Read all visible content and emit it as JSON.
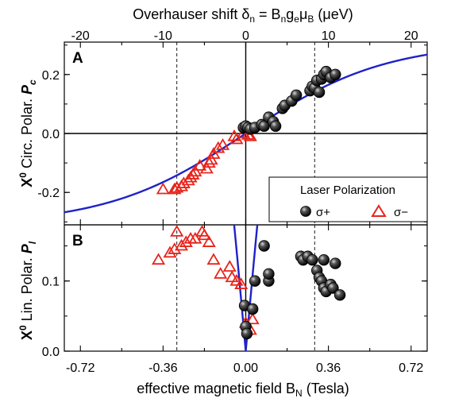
{
  "figure": {
    "top_axis_title": "Overhauser shift δ_n = B_n g_e μ_B (μeV)",
    "bottom_axis_title": "effective magnetic field B_N (Tesla)",
    "top_ticks": [
      "-20",
      "-10",
      "0",
      "10",
      "20"
    ],
    "bottom_ticks": [
      "-0.72",
      "-0.36",
      "0.00",
      "0.36",
      "0.72"
    ]
  },
  "legend": {
    "title": "Laser Polarization",
    "entries": [
      {
        "label": "σ+",
        "marker": "filled-black-circle"
      },
      {
        "label": "σ−",
        "marker": "open-red-triangle"
      }
    ]
  },
  "colors": {
    "fit_line": "#1f22c8",
    "sigma_minus": "#e8241b",
    "sigma_plus": "#000000"
  },
  "chart_data": [
    {
      "type": "scatter",
      "panel": "A",
      "ylabel": "X0 Circ. Polar. Pc",
      "xlim": [
        -0.79,
        0.79
      ],
      "ylim": [
        -0.31,
        0.31
      ],
      "yticks": [
        -0.2,
        0.0,
        0.2
      ],
      "ytick_labels": [
        "-0.2",
        "0.0",
        "0.2"
      ],
      "x_unit": "Tesla",
      "grid": false,
      "reference_lines": {
        "dashed_x": [
          -0.3,
          0.3
        ],
        "solid_x": [
          0.0
        ],
        "solid_y": [
          0.0
        ]
      },
      "series": [
        {
          "name": "σ+",
          "points": [
            {
              "x": -0.01,
              "y": 0.02
            },
            {
              "x": 0.0,
              "y": 0.025
            },
            {
              "x": 0.01,
              "y": 0.02
            },
            {
              "x": 0.02,
              "y": 0.015
            },
            {
              "x": 0.04,
              "y": 0.02
            },
            {
              "x": 0.07,
              "y": 0.03
            },
            {
              "x": 0.08,
              "y": 0.025
            },
            {
              "x": 0.1,
              "y": 0.055
            },
            {
              "x": 0.12,
              "y": 0.04
            },
            {
              "x": 0.13,
              "y": 0.025
            },
            {
              "x": 0.16,
              "y": 0.085
            },
            {
              "x": 0.17,
              "y": 0.095
            },
            {
              "x": 0.2,
              "y": 0.11
            },
            {
              "x": 0.22,
              "y": 0.13
            },
            {
              "x": 0.28,
              "y": 0.145
            },
            {
              "x": 0.29,
              "y": 0.16
            },
            {
              "x": 0.3,
              "y": 0.155
            },
            {
              "x": 0.31,
              "y": 0.18
            },
            {
              "x": 0.33,
              "y": 0.185
            },
            {
              "x": 0.34,
              "y": 0.2
            },
            {
              "x": 0.35,
              "y": 0.21
            },
            {
              "x": 0.37,
              "y": 0.19
            },
            {
              "x": 0.39,
              "y": 0.2
            },
            {
              "x": 0.32,
              "y": 0.14
            }
          ]
        },
        {
          "name": "σ−",
          "points": [
            {
              "x": -0.01,
              "y": 0.0
            },
            {
              "x": 0.01,
              "y": -0.005
            },
            {
              "x": 0.02,
              "y": -0.01
            },
            {
              "x": -0.04,
              "y": -0.02
            },
            {
              "x": -0.05,
              "y": -0.01
            },
            {
              "x": -0.1,
              "y": -0.04
            },
            {
              "x": -0.12,
              "y": -0.05
            },
            {
              "x": -0.14,
              "y": -0.07
            },
            {
              "x": -0.15,
              "y": -0.09
            },
            {
              "x": -0.16,
              "y": -0.1
            },
            {
              "x": -0.17,
              "y": -0.12
            },
            {
              "x": -0.2,
              "y": -0.11
            },
            {
              "x": -0.22,
              "y": -0.13
            },
            {
              "x": -0.23,
              "y": -0.14
            },
            {
              "x": -0.24,
              "y": -0.15
            },
            {
              "x": -0.25,
              "y": -0.16
            },
            {
              "x": -0.27,
              "y": -0.17
            },
            {
              "x": -0.28,
              "y": -0.18
            },
            {
              "x": -0.3,
              "y": -0.185
            },
            {
              "x": -0.31,
              "y": -0.19
            },
            {
              "x": -0.36,
              "y": -0.19
            }
          ]
        }
      ],
      "fit_curve": {
        "form": "0.31*tanh(1.65*x)",
        "x_range": [
          -0.79,
          0.79
        ]
      }
    },
    {
      "type": "scatter",
      "panel": "B",
      "ylabel": "X0 Lin. Polar. Pl",
      "xlim": [
        -0.79,
        0.79
      ],
      "ylim": [
        0.0,
        0.18
      ],
      "yticks": [
        0.0,
        0.1
      ],
      "ytick_labels": [
        "0.0",
        "0.1"
      ],
      "x_unit": "Tesla",
      "grid": false,
      "reference_lines": {
        "dashed_x": [
          -0.3,
          0.3
        ],
        "solid_x": [
          0.0
        ]
      },
      "series": [
        {
          "name": "σ+",
          "points": [
            {
              "x": -0.005,
              "y": 0.065
            },
            {
              "x": 0.0,
              "y": 0.035
            },
            {
              "x": 0.005,
              "y": 0.025
            },
            {
              "x": 0.03,
              "y": 0.06
            },
            {
              "x": 0.04,
              "y": 0.1
            },
            {
              "x": 0.08,
              "y": 0.15
            },
            {
              "x": 0.1,
              "y": 0.1
            },
            {
              "x": 0.1,
              "y": 0.11
            },
            {
              "x": 0.24,
              "y": 0.135
            },
            {
              "x": 0.25,
              "y": 0.13
            },
            {
              "x": 0.27,
              "y": 0.135
            },
            {
              "x": 0.29,
              "y": 0.13
            },
            {
              "x": 0.31,
              "y": 0.115
            },
            {
              "x": 0.32,
              "y": 0.105
            },
            {
              "x": 0.33,
              "y": 0.1
            },
            {
              "x": 0.34,
              "y": 0.13
            },
            {
              "x": 0.34,
              "y": 0.09
            },
            {
              "x": 0.35,
              "y": 0.085
            },
            {
              "x": 0.37,
              "y": 0.095
            },
            {
              "x": 0.38,
              "y": 0.09
            },
            {
              "x": 0.39,
              "y": 0.125
            },
            {
              "x": 0.41,
              "y": 0.08
            }
          ]
        },
        {
          "name": "σ−",
          "points": [
            {
              "x": -0.38,
              "y": 0.13
            },
            {
              "x": -0.33,
              "y": 0.14
            },
            {
              "x": -0.31,
              "y": 0.145
            },
            {
              "x": -0.3,
              "y": 0.17
            },
            {
              "x": -0.28,
              "y": 0.15
            },
            {
              "x": -0.26,
              "y": 0.155
            },
            {
              "x": -0.24,
              "y": 0.16
            },
            {
              "x": -0.22,
              "y": 0.16
            },
            {
              "x": -0.19,
              "y": 0.17
            },
            {
              "x": -0.18,
              "y": 0.165
            },
            {
              "x": -0.16,
              "y": 0.155
            },
            {
              "x": -0.14,
              "y": 0.13
            },
            {
              "x": -0.11,
              "y": 0.11
            },
            {
              "x": -0.07,
              "y": 0.12
            },
            {
              "x": -0.06,
              "y": 0.105
            },
            {
              "x": -0.04,
              "y": 0.1
            },
            {
              "x": -0.02,
              "y": 0.095
            },
            {
              "x": 0.0,
              "y": 0.04
            },
            {
              "x": 0.02,
              "y": 0.03
            },
            {
              "x": 0.03,
              "y": 0.045
            }
          ]
        }
      ],
      "fit_curve": {
        "form": "0.33*|x|/(x^2+0.09)",
        "x_range": [
          -0.79,
          0.79
        ]
      }
    }
  ]
}
